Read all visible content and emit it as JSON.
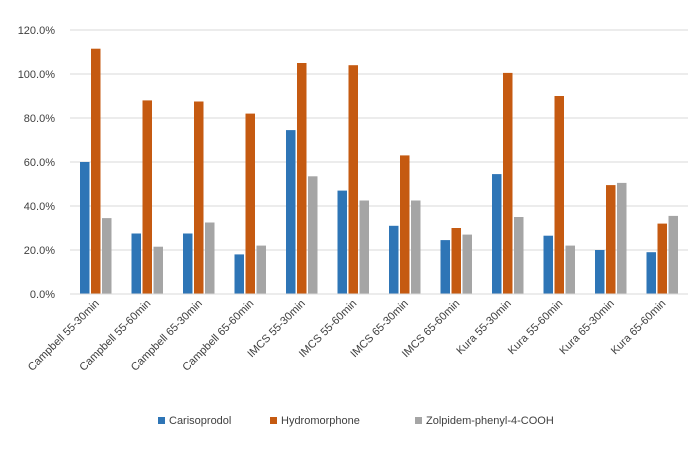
{
  "chart_data": {
    "type": "bar",
    "title": "",
    "xlabel": "",
    "ylabel": "",
    "ylim": [
      0,
      1.2
    ],
    "yticks": [
      "0.0%",
      "20.0%",
      "40.0%",
      "60.0%",
      "80.0%",
      "100.0%",
      "120.0%"
    ],
    "grid": true,
    "legend_position": "bottom",
    "categories": [
      "Campbell 55-30min",
      "Campbell 55-60min",
      "Campbell 65-30min",
      "Campbell 65-60min",
      "IMCS 55-30min",
      "IMCS 55-60min",
      "IMCS 65-30min",
      "IMCS 65-60min",
      "Kura 55-30min",
      "Kura 55-60min",
      "Kura 65-30min",
      "Kura 65-60min"
    ],
    "series": [
      {
        "name": "Carisoprodol",
        "color": "#2E75B6",
        "values": [
          0.6,
          0.275,
          0.275,
          0.18,
          0.745,
          0.47,
          0.31,
          0.245,
          0.545,
          0.265,
          0.2,
          0.19
        ]
      },
      {
        "name": "Hydromorphone",
        "color": "#C55A11",
        "values": [
          1.115,
          0.88,
          0.875,
          0.82,
          1.05,
          1.04,
          0.63,
          0.3,
          1.005,
          0.9,
          0.495,
          0.32
        ]
      },
      {
        "name": "Zolpidem-phenyl-4-COOH",
        "color": "#A5A5A5",
        "values": [
          0.345,
          0.215,
          0.325,
          0.22,
          0.535,
          0.425,
          0.425,
          0.27,
          0.35,
          0.22,
          0.505,
          0.355
        ]
      }
    ]
  }
}
